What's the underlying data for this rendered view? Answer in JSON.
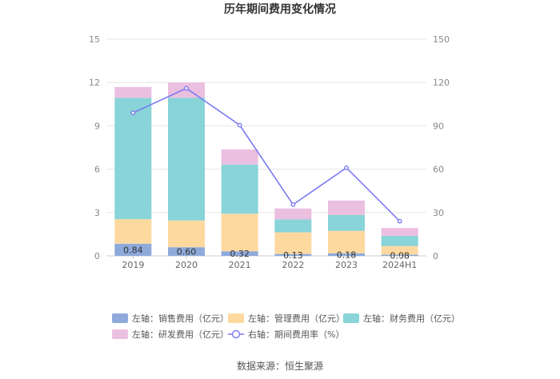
{
  "chart_data": {
    "type": "bar",
    "title": "历年期间费用变化情况",
    "categories": [
      "2019",
      "2020",
      "2021",
      "2022",
      "2023",
      "2024H1"
    ],
    "series": [
      {
        "name": "左轴：销售费用（亿元）",
        "axis": "left",
        "color": "#8eaadb",
        "values": [
          0.84,
          0.6,
          0.32,
          0.13,
          0.18,
          0.08
        ]
      },
      {
        "name": "左轴：管理费用（亿元）",
        "axis": "left",
        "color": "#fdd9a0",
        "values": [
          1.7,
          1.85,
          2.6,
          1.5,
          1.55,
          0.6
        ]
      },
      {
        "name": "左轴：财务费用（亿元）",
        "axis": "left",
        "color": "#88d4d8",
        "values": [
          8.4,
          8.5,
          3.4,
          0.9,
          1.1,
          0.7
        ]
      },
      {
        "name": "左轴：研发费用（亿元）",
        "axis": "left",
        "color": "#ebbfe0",
        "values": [
          0.75,
          1.05,
          1.05,
          0.75,
          1.0,
          0.55
        ]
      },
      {
        "name": "右轴：期间费用率（%）",
        "axis": "right",
        "type": "line",
        "color": "#7b7bf2",
        "values": [
          99,
          116,
          90.5,
          35.5,
          61,
          24
        ]
      }
    ],
    "data_labels": [
      "0.84",
      "0.60",
      "0.32",
      "0.13",
      "0.18",
      "0.08"
    ],
    "y_left": {
      "min": 0,
      "max": 15,
      "ticks": [
        "0",
        "3",
        "6",
        "9",
        "12",
        "15"
      ]
    },
    "y_right": {
      "min": 0,
      "max": 150,
      "ticks": [
        "0",
        "30",
        "60",
        "90",
        "120",
        "150"
      ]
    },
    "stacked": true,
    "legend_position": "bottom",
    "grid": true
  },
  "source": "数据来源：恒生聚源"
}
